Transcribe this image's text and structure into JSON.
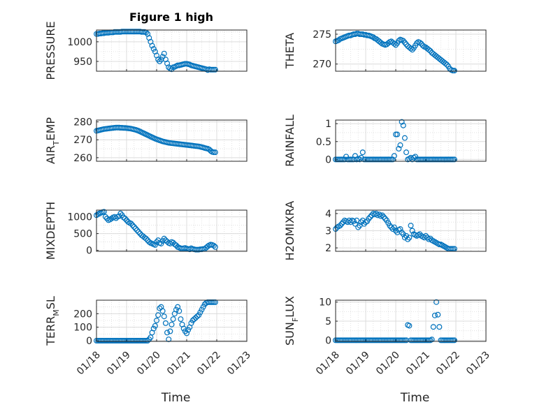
{
  "figure": {
    "title": "Figure 1 high",
    "marker_color": "#0072BD"
  },
  "chart_data": [
    {
      "type": "scatter",
      "ylabel": "PRESSURE",
      "xlim": [
        0,
        5
      ],
      "ylim": [
        925,
        1030
      ],
      "yticks": [
        950,
        1000
      ],
      "x": [
        0.0,
        0.05,
        0.1,
        0.15,
        0.2,
        0.25,
        0.3,
        0.35,
        0.4,
        0.45,
        0.5,
        0.55,
        0.6,
        0.65,
        0.7,
        0.75,
        0.8,
        0.85,
        0.9,
        0.95,
        1.0,
        1.05,
        1.1,
        1.15,
        1.2,
        1.25,
        1.3,
        1.35,
        1.4,
        1.45,
        1.5,
        1.55,
        1.6,
        1.65,
        1.7,
        1.75,
        1.8,
        1.85,
        1.9,
        1.95,
        2.0,
        2.05,
        2.1,
        2.15,
        2.2,
        2.25,
        2.3,
        2.35,
        2.4,
        2.45,
        2.5,
        2.55,
        2.6,
        2.65,
        2.7,
        2.75,
        2.8,
        2.85,
        2.9,
        2.95,
        3.0,
        3.05,
        3.1,
        3.15,
        3.2,
        3.25,
        3.3,
        3.35,
        3.4,
        3.45,
        3.5,
        3.55,
        3.6,
        3.65,
        3.7,
        3.75,
        3.8,
        3.85,
        3.9,
        3.95
      ],
      "y": [
        1020,
        1020,
        1021,
        1021,
        1022,
        1022,
        1023,
        1023,
        1023,
        1024,
        1024,
        1024,
        1025,
        1025,
        1025,
        1025,
        1025,
        1026,
        1026,
        1026,
        1026,
        1026,
        1026,
        1026,
        1026,
        1026,
        1026,
        1026,
        1026,
        1026,
        1025,
        1025,
        1025,
        1024,
        1020,
        1010,
        1000,
        990,
        982,
        975,
        965,
        955,
        950,
        955,
        962,
        970,
        955,
        945,
        935,
        932,
        930,
        935,
        936,
        938,
        940,
        940,
        941,
        942,
        943,
        944,
        944,
        943,
        942,
        940,
        939,
        938,
        937,
        936,
        935,
        934,
        933,
        932,
        931,
        930,
        928,
        930,
        929,
        929,
        929,
        929
      ]
    },
    {
      "type": "scatter",
      "ylabel": "THETA",
      "xlim": [
        0,
        5
      ],
      "ylim": [
        268.8,
        275.7
      ],
      "yticks": [
        270,
        275
      ],
      "x": [
        0.0,
        0.05,
        0.1,
        0.15,
        0.2,
        0.25,
        0.3,
        0.35,
        0.4,
        0.45,
        0.5,
        0.55,
        0.6,
        0.65,
        0.7,
        0.75,
        0.8,
        0.85,
        0.9,
        0.95,
        1.0,
        1.05,
        1.1,
        1.15,
        1.2,
        1.25,
        1.3,
        1.35,
        1.4,
        1.45,
        1.5,
        1.55,
        1.6,
        1.65,
        1.7,
        1.75,
        1.8,
        1.85,
        1.9,
        1.95,
        2.0,
        2.05,
        2.1,
        2.15,
        2.2,
        2.25,
        2.3,
        2.35,
        2.4,
        2.45,
        2.5,
        2.55,
        2.6,
        2.65,
        2.7,
        2.75,
        2.8,
        2.85,
        2.9,
        2.95,
        3.0,
        3.05,
        3.1,
        3.15,
        3.2,
        3.25,
        3.3,
        3.35,
        3.4,
        3.45,
        3.5,
        3.55,
        3.6,
        3.65,
        3.7,
        3.75,
        3.8,
        3.85,
        3.9,
        3.95
      ],
      "y": [
        273.8,
        273.9,
        274.0,
        274.2,
        274.3,
        274.4,
        274.5,
        274.6,
        274.7,
        274.8,
        274.8,
        274.9,
        275.0,
        275.0,
        275.1,
        275.1,
        275.0,
        275.0,
        275.0,
        274.9,
        274.9,
        274.8,
        274.8,
        274.7,
        274.6,
        274.5,
        274.3,
        274.2,
        274.0,
        273.8,
        273.6,
        273.4,
        273.3,
        273.2,
        273.3,
        273.5,
        273.7,
        273.8,
        273.6,
        273.4,
        273.2,
        273.5,
        273.9,
        274.1,
        274.0,
        273.9,
        273.6,
        273.3,
        273.0,
        272.8,
        272.6,
        272.4,
        272.7,
        273.1,
        273.5,
        273.7,
        273.6,
        273.4,
        273.1,
        272.9,
        272.8,
        272.6,
        272.4,
        272.2,
        271.9,
        271.7,
        271.5,
        271.3,
        271.1,
        270.9,
        270.7,
        270.5,
        270.3,
        270.1,
        269.9,
        269.6,
        269.2,
        269.0,
        268.9,
        268.9
      ]
    },
    {
      "type": "scatter",
      "ylabel": "AIR_TEMP",
      "ylabel_display": [
        "AIR",
        "T",
        "EMP"
      ],
      "xlim": [
        0,
        5
      ],
      "ylim": [
        258,
        281
      ],
      "yticks": [
        260,
        270,
        280
      ],
      "x": [
        0.0,
        0.05,
        0.1,
        0.15,
        0.2,
        0.25,
        0.3,
        0.35,
        0.4,
        0.45,
        0.5,
        0.55,
        0.6,
        0.65,
        0.7,
        0.75,
        0.8,
        0.85,
        0.9,
        0.95,
        1.0,
        1.05,
        1.1,
        1.15,
        1.2,
        1.25,
        1.3,
        1.35,
        1.4,
        1.45,
        1.5,
        1.55,
        1.6,
        1.65,
        1.7,
        1.75,
        1.8,
        1.85,
        1.9,
        1.95,
        2.0,
        2.05,
        2.1,
        2.15,
        2.2,
        2.25,
        2.3,
        2.35,
        2.4,
        2.45,
        2.5,
        2.55,
        2.6,
        2.65,
        2.7,
        2.75,
        2.8,
        2.85,
        2.9,
        2.95,
        3.0,
        3.05,
        3.1,
        3.15,
        3.2,
        3.25,
        3.3,
        3.35,
        3.4,
        3.45,
        3.5,
        3.55,
        3.6,
        3.65,
        3.7,
        3.75,
        3.8,
        3.85,
        3.9,
        3.95
      ],
      "y": [
        275.0,
        275.2,
        275.4,
        275.6,
        275.8,
        276.0,
        276.1,
        276.2,
        276.3,
        276.4,
        276.5,
        276.6,
        276.7,
        276.8,
        276.8,
        276.8,
        276.7,
        276.7,
        276.6,
        276.6,
        276.5,
        276.4,
        276.3,
        276.2,
        276.0,
        275.8,
        275.6,
        275.3,
        275.0,
        274.6,
        274.2,
        273.8,
        273.4,
        273.0,
        272.6,
        272.2,
        271.8,
        271.4,
        271.0,
        270.6,
        270.3,
        270.0,
        269.7,
        269.4,
        269.1,
        268.9,
        268.7,
        268.5,
        268.3,
        268.2,
        268.1,
        268.0,
        267.9,
        267.8,
        267.7,
        267.6,
        267.5,
        267.4,
        267.3,
        267.2,
        267.1,
        267.0,
        266.9,
        266.8,
        266.7,
        266.6,
        266.5,
        266.4,
        266.3,
        266.1,
        265.9,
        265.7,
        265.4,
        265.2,
        265.0,
        264.6,
        263.8,
        263.2,
        263.0,
        263.0
      ]
    },
    {
      "type": "scatter",
      "ylabel": "RAINFALL",
      "xlim": [
        0,
        5
      ],
      "ylim": [
        -0.05,
        1.1
      ],
      "yticks": [
        0,
        0.5,
        1
      ],
      "x": [
        0.0,
        0.05,
        0.1,
        0.15,
        0.2,
        0.25,
        0.3,
        0.35,
        0.4,
        0.45,
        0.5,
        0.55,
        0.6,
        0.65,
        0.7,
        0.75,
        0.8,
        0.85,
        0.9,
        0.95,
        1.0,
        1.05,
        1.1,
        1.15,
        1.2,
        1.25,
        1.3,
        1.35,
        1.4,
        1.45,
        1.5,
        1.55,
        1.6,
        1.65,
        1.7,
        1.75,
        1.8,
        1.85,
        1.9,
        1.95,
        2.0,
        2.05,
        2.1,
        2.15,
        2.2,
        2.25,
        2.3,
        2.35,
        2.4,
        2.45,
        2.5,
        2.55,
        2.6,
        2.65,
        2.7,
        2.75,
        2.8,
        2.85,
        2.9,
        2.95,
        3.0,
        3.05,
        3.1,
        3.15,
        3.2,
        3.25,
        3.3,
        3.35,
        3.4,
        3.45,
        3.5,
        3.55,
        3.6,
        3.65,
        3.7,
        3.75,
        3.8,
        3.85,
        3.9,
        3.95
      ],
      "y": [
        0,
        0,
        0,
        0,
        0,
        0,
        0,
        0.08,
        0,
        0,
        0,
        0,
        0,
        0.1,
        0,
        0.02,
        0,
        0.05,
        0.2,
        0,
        0,
        0,
        0,
        0,
        0,
        0,
        0,
        0,
        0,
        0,
        0,
        0,
        0,
        0,
        0,
        0,
        0,
        0,
        0,
        0.1,
        0.7,
        0.7,
        0.3,
        0.4,
        1.05,
        0.95,
        0.6,
        0.2,
        0,
        0.02,
        0.05,
        0,
        0.05,
        0.08,
        0,
        0,
        0,
        0,
        0,
        0,
        0,
        0,
        0,
        0,
        0,
        0,
        0,
        0,
        0,
        0,
        0,
        0,
        0,
        0,
        0,
        0,
        0,
        0,
        0,
        0
      ]
    },
    {
      "type": "scatter",
      "ylabel": "MIXDEPTH",
      "xlim": [
        0,
        5
      ],
      "ylim": [
        -30,
        1200
      ],
      "yticks": [
        0,
        500,
        1000
      ],
      "x": [
        0.0,
        0.05,
        0.1,
        0.15,
        0.2,
        0.25,
        0.3,
        0.35,
        0.4,
        0.45,
        0.5,
        0.55,
        0.6,
        0.65,
        0.7,
        0.75,
        0.8,
        0.85,
        0.9,
        0.95,
        1.0,
        1.05,
        1.1,
        1.15,
        1.2,
        1.25,
        1.3,
        1.35,
        1.4,
        1.45,
        1.5,
        1.55,
        1.6,
        1.65,
        1.7,
        1.75,
        1.8,
        1.85,
        1.9,
        1.95,
        2.0,
        2.05,
        2.1,
        2.15,
        2.2,
        2.25,
        2.3,
        2.35,
        2.4,
        2.45,
        2.5,
        2.55,
        2.6,
        2.65,
        2.7,
        2.75,
        2.8,
        2.85,
        2.9,
        2.95,
        3.0,
        3.05,
        3.1,
        3.15,
        3.2,
        3.25,
        3.3,
        3.35,
        3.4,
        3.45,
        3.5,
        3.55,
        3.6,
        3.65,
        3.7,
        3.75,
        3.8,
        3.85,
        3.9,
        3.95
      ],
      "y": [
        1050,
        1080,
        1100,
        1120,
        1140,
        1150,
        1000,
        950,
        900,
        920,
        950,
        980,
        1000,
        960,
        1000,
        1020,
        1100,
        1050,
        980,
        950,
        900,
        850,
        820,
        800,
        750,
        700,
        650,
        600,
        550,
        500,
        450,
        420,
        380,
        350,
        300,
        250,
        220,
        200,
        180,
        160,
        250,
        300,
        220,
        200,
        280,
        350,
        300,
        260,
        220,
        200,
        250,
        230,
        180,
        150,
        100,
        80,
        60,
        50,
        60,
        70,
        50,
        40,
        30,
        60,
        40,
        30,
        20,
        20,
        20,
        30,
        30,
        40,
        40,
        80,
        120,
        150,
        170,
        160,
        140,
        100
      ]
    },
    {
      "type": "scatter",
      "ylabel": "H2OMIXRA",
      "xlim": [
        0,
        5
      ],
      "ylim": [
        1.8,
        4.2
      ],
      "yticks": [
        2,
        3,
        4
      ],
      "x": [
        0.0,
        0.05,
        0.1,
        0.15,
        0.2,
        0.25,
        0.3,
        0.35,
        0.4,
        0.45,
        0.5,
        0.55,
        0.6,
        0.65,
        0.7,
        0.75,
        0.8,
        0.85,
        0.9,
        0.95,
        1.0,
        1.05,
        1.1,
        1.15,
        1.2,
        1.25,
        1.3,
        1.35,
        1.4,
        1.45,
        1.5,
        1.55,
        1.6,
        1.65,
        1.7,
        1.75,
        1.8,
        1.85,
        1.9,
        1.95,
        2.0,
        2.05,
        2.1,
        2.15,
        2.2,
        2.25,
        2.3,
        2.35,
        2.4,
        2.45,
        2.5,
        2.55,
        2.6,
        2.65,
        2.7,
        2.75,
        2.8,
        2.85,
        2.9,
        2.95,
        3.0,
        3.05,
        3.1,
        3.15,
        3.2,
        3.25,
        3.3,
        3.35,
        3.4,
        3.45,
        3.5,
        3.55,
        3.6,
        3.65,
        3.7,
        3.75,
        3.8,
        3.85,
        3.9,
        3.95
      ],
      "y": [
        3.1,
        3.2,
        3.25,
        3.3,
        3.4,
        3.5,
        3.6,
        3.55,
        3.5,
        3.6,
        3.5,
        3.6,
        3.55,
        3.4,
        3.6,
        3.2,
        3.3,
        3.5,
        3.6,
        3.4,
        3.5,
        3.55,
        3.7,
        3.8,
        3.9,
        4.0,
        3.95,
        4.0,
        3.9,
        3.95,
        3.85,
        3.9,
        3.8,
        3.7,
        3.6,
        3.45,
        3.3,
        3.2,
        3.1,
        3.2,
        3.0,
        2.9,
        3.05,
        3.1,
        2.9,
        2.8,
        2.6,
        2.7,
        2.5,
        2.6,
        3.3,
        3.0,
        2.8,
        2.75,
        2.7,
        2.75,
        2.8,
        2.7,
        2.65,
        2.6,
        2.7,
        2.6,
        2.5,
        2.55,
        2.45,
        2.4,
        2.35,
        2.3,
        2.25,
        2.2,
        2.2,
        2.15,
        2.1,
        2.05,
        2.0,
        1.95,
        1.95,
        1.95,
        1.95,
        1.95
      ]
    },
    {
      "type": "scatter",
      "ylabel": "TERR_MSL",
      "ylabel_display": [
        "TERR",
        "M",
        "SL"
      ],
      "xlabel": "Time",
      "xlim": [
        0,
        5
      ],
      "xticks": [
        "01/18",
        "01/19",
        "01/20",
        "01/21",
        "01/22",
        "01/23"
      ],
      "ylim": [
        -5,
        300
      ],
      "yticks": [
        0,
        100,
        200
      ],
      "x": [
        0.0,
        0.05,
        0.1,
        0.15,
        0.2,
        0.25,
        0.3,
        0.35,
        0.4,
        0.45,
        0.5,
        0.55,
        0.6,
        0.65,
        0.7,
        0.75,
        0.8,
        0.85,
        0.9,
        0.95,
        1.0,
        1.05,
        1.1,
        1.15,
        1.2,
        1.25,
        1.3,
        1.35,
        1.4,
        1.45,
        1.5,
        1.55,
        1.6,
        1.65,
        1.7,
        1.75,
        1.8,
        1.85,
        1.9,
        1.95,
        2.0,
        2.05,
        2.1,
        2.15,
        2.2,
        2.25,
        2.3,
        2.35,
        2.4,
        2.45,
        2.5,
        2.55,
        2.6,
        2.65,
        2.7,
        2.75,
        2.8,
        2.85,
        2.9,
        2.95,
        3.0,
        3.05,
        3.1,
        3.15,
        3.2,
        3.25,
        3.3,
        3.35,
        3.4,
        3.45,
        3.5,
        3.55,
        3.6,
        3.65,
        3.7,
        3.75,
        3.8,
        3.85,
        3.9,
        3.95
      ],
      "y": [
        0,
        0,
        0,
        0,
        0,
        0,
        0,
        0,
        0,
        0,
        0,
        0,
        0,
        0,
        0,
        0,
        0,
        0,
        0,
        0,
        0,
        0,
        0,
        0,
        0,
        0,
        0,
        0,
        0,
        0,
        0,
        0,
        0,
        0,
        0,
        10,
        25,
        60,
        90,
        110,
        150,
        190,
        240,
        250,
        220,
        180,
        130,
        60,
        10,
        70,
        120,
        160,
        200,
        230,
        250,
        220,
        160,
        120,
        90,
        70,
        55,
        80,
        100,
        130,
        150,
        160,
        170,
        180,
        190,
        210,
        230,
        250,
        270,
        280,
        285,
        285,
        285,
        285,
        285,
        285
      ]
    },
    {
      "type": "scatter",
      "ylabel": "SUN_FLUX",
      "ylabel_display": [
        "SUN",
        "F",
        "LUX"
      ],
      "xlabel": "Time",
      "xlim": [
        0,
        5
      ],
      "xticks": [
        "01/18",
        "01/19",
        "01/20",
        "01/21",
        "01/22",
        "01/23"
      ],
      "ylim": [
        -0.3,
        10.5
      ],
      "yticks": [
        0,
        5,
        10
      ],
      "x": [
        0.0,
        0.05,
        0.1,
        0.15,
        0.2,
        0.25,
        0.3,
        0.35,
        0.4,
        0.45,
        0.5,
        0.55,
        0.6,
        0.65,
        0.7,
        0.75,
        0.8,
        0.85,
        0.9,
        0.95,
        1.0,
        1.05,
        1.1,
        1.15,
        1.2,
        1.25,
        1.3,
        1.35,
        1.4,
        1.45,
        1.5,
        1.55,
        1.6,
        1.65,
        1.7,
        1.75,
        1.8,
        1.85,
        1.9,
        1.95,
        2.0,
        2.05,
        2.1,
        2.15,
        2.2,
        2.25,
        2.3,
        2.35,
        2.4,
        2.45,
        2.5,
        2.55,
        2.6,
        2.65,
        2.7,
        2.75,
        2.8,
        2.85,
        2.9,
        2.95,
        3.0,
        3.05,
        3.1,
        3.15,
        3.2,
        3.25,
        3.3,
        3.35,
        3.4,
        3.45,
        3.5,
        3.55,
        3.6,
        3.65,
        3.7,
        3.75,
        3.8,
        3.85,
        3.9,
        3.95
      ],
      "y": [
        0,
        0,
        0,
        0,
        0,
        0,
        0,
        0,
        0,
        0,
        0,
        0,
        0,
        0,
        0,
        0,
        0,
        0,
        0,
        0,
        0,
        0,
        0,
        0,
        0,
        0,
        0,
        0,
        0,
        0,
        0,
        0,
        0,
        0,
        0,
        0,
        0,
        0,
        0,
        0,
        0,
        0,
        0,
        0,
        0,
        0,
        0,
        0,
        4.0,
        3.8,
        0,
        0,
        0,
        0,
        0,
        0,
        0,
        0,
        0,
        0,
        0,
        0,
        0,
        0,
        0.2,
        3.5,
        6.5,
        10.0,
        6.7,
        3.5,
        0,
        0,
        0,
        0,
        0,
        0,
        0,
        0,
        0,
        0
      ]
    }
  ]
}
